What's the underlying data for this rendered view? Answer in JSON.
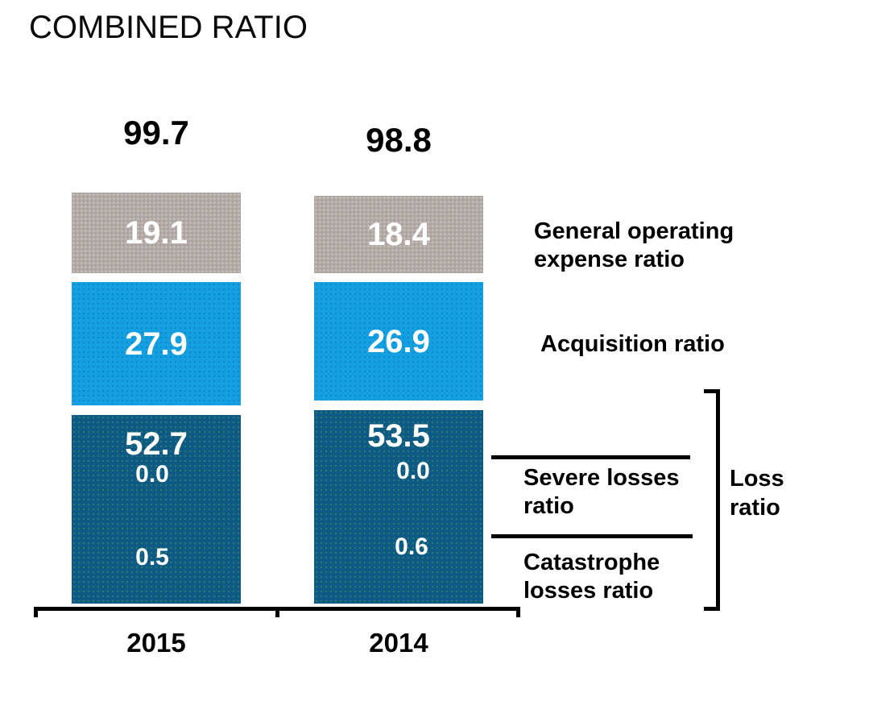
{
  "title": "COMBINED RATIO",
  "chart_data": {
    "type": "bar",
    "stacked": true,
    "title": "COMBINED RATIO",
    "categories": [
      "2015",
      "2014"
    ],
    "totals": [
      99.7,
      98.8
    ],
    "series": [
      {
        "name": "Loss ratio",
        "values": [
          52.7,
          53.5
        ],
        "color": "#0d5b84"
      },
      {
        "name": "Acquisition ratio",
        "values": [
          27.9,
          26.9
        ],
        "color": "#149fe0"
      },
      {
        "name": "General operating expense ratio",
        "values": [
          19.1,
          18.4
        ],
        "color": "#b3aaa6"
      }
    ],
    "sub_annotations": [
      {
        "name": "Severe losses ratio",
        "values": [
          0.0,
          0.0
        ]
      },
      {
        "name": "Catastrophe losses ratio",
        "values": [
          0.5,
          0.6
        ]
      }
    ],
    "grouping": "Loss ratio bracket spans Severe losses ratio and Catastrophe losses ratio",
    "legend_position": "right",
    "grid": false,
    "xlabel": "",
    "ylabel": "",
    "ylim": [
      0,
      100
    ]
  },
  "bars": [
    {
      "year": "2015",
      "total": "99.7",
      "general": "19.1",
      "acquisition": "27.9",
      "loss": "52.7",
      "severe": "0.0",
      "catastrophe": "0.5"
    },
    {
      "year": "2014",
      "total": "98.8",
      "general": "18.4",
      "acquisition": "26.9",
      "loss": "53.5",
      "severe": "0.0",
      "catastrophe": "0.6"
    }
  ],
  "labels": {
    "general_line1": "General operating",
    "general_line2": "expense ratio",
    "acquisition": "Acquisition ratio",
    "severe_line1": "Severe losses",
    "severe_line2": "ratio",
    "catastrophe_line1": "Catastrophe",
    "catastrophe_line2": "losses ratio",
    "loss_line1": "Loss",
    "loss_line2": "ratio"
  },
  "colors": {
    "general_segment": "#b3aaa6",
    "acquisition_segment": "#149fe0",
    "loss_segment": "#0d5b84",
    "bar_value_text": "#ffffff",
    "axis_and_lines": "#000000"
  }
}
